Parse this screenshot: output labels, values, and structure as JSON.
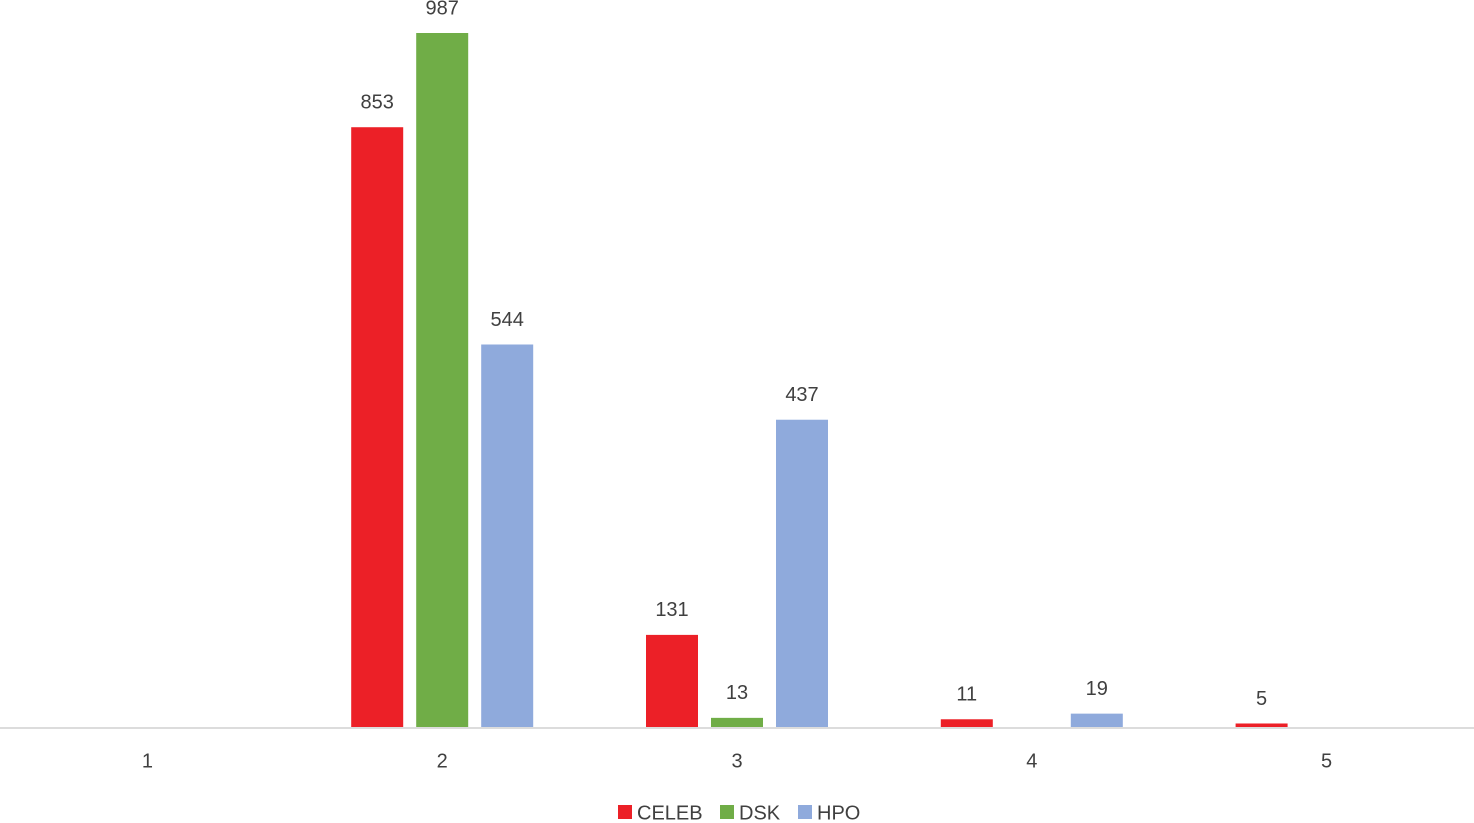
{
  "chart_data": {
    "type": "bar",
    "categories": [
      "1",
      "2",
      "3",
      "4",
      "5"
    ],
    "series": [
      {
        "name": "CELEB",
        "color": "#ec2027",
        "values": [
          null,
          853,
          131,
          11,
          5
        ]
      },
      {
        "name": "DSK",
        "color": "#70ad47",
        "values": [
          null,
          987,
          13,
          null,
          null
        ]
      },
      {
        "name": "HPO",
        "color": "#8faadc",
        "values": [
          null,
          544,
          437,
          19,
          null
        ]
      }
    ]
  }
}
